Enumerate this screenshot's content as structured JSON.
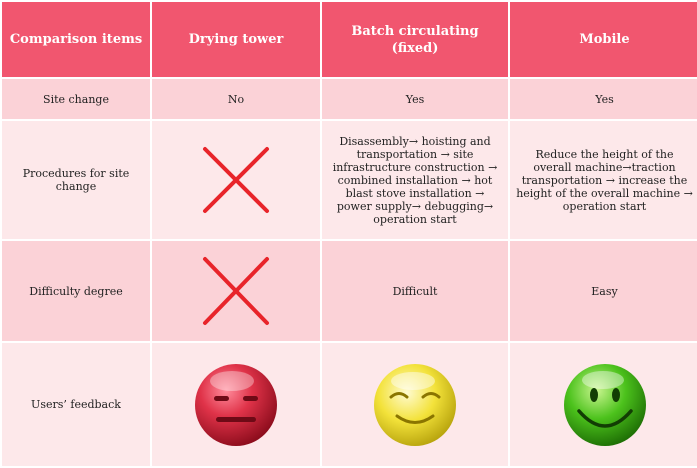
{
  "table": {
    "headers": [
      "Comparison items",
      "Drying tower",
      "Batch circulating (fixed)",
      "Mobile"
    ],
    "rows": [
      {
        "label": "Site change",
        "drying_tower": "No",
        "batch": "Yes",
        "mobile": "Yes"
      },
      {
        "label": "Procedures for site change",
        "drying_tower_icon": "red-x-icon",
        "batch": "Disassembly→ hoisting and transportation → site infrastructure construction → combined installation →  hot blast stove installation →  power supply→  debugging→ operation start",
        "mobile": "Reduce the height of the overall machine→traction transportation → increase the height of the overall machine → operation start"
      },
      {
        "label": "Difficulty degree",
        "drying_tower_icon": "red-x-icon",
        "batch": "Difficult",
        "mobile": "Easy"
      },
      {
        "label": "Users’ feedback",
        "drying_tower_icon": "neutral-red-face-icon",
        "batch_icon": "mild-smile-yellow-face-icon",
        "mobile_icon": "happy-green-face-icon"
      }
    ]
  },
  "colors": {
    "header_bg": "#f1566f",
    "row_dark": "#fbd2d7",
    "row_light": "#fde8ea",
    "x_mark": "#e8242a"
  }
}
